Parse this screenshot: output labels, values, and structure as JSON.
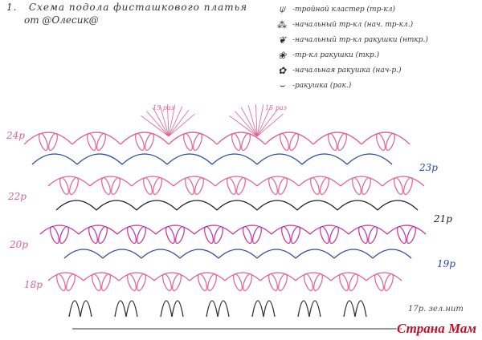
{
  "header": {
    "number": "1.",
    "title": "Схема подола фисташкового платья",
    "author": "от @Олесик@"
  },
  "legend": [
    {
      "icon": "triple-cluster-icon",
      "label": "-тройной кластер (тр-кл)"
    },
    {
      "icon": "initial-cluster-icon",
      "label": "-начальный тр-кл (нач. тр-кл.)"
    },
    {
      "icon": "initial-shell-cluster-icon",
      "label": "-начальный тр-кл ракушки (нткр.)"
    },
    {
      "icon": "shell-cluster-icon",
      "label": "-тр-кл ракушки (ткр.)"
    },
    {
      "icon": "initial-shell-icon",
      "label": "-начальная ракушка (нач-р.)"
    },
    {
      "icon": "shell-icon",
      "label": "-ракушка (рак.)"
    }
  ],
  "rows": {
    "r24": "24р",
    "r23": "23р",
    "r22": "22р",
    "r21": "21р",
    "r20": "20р",
    "r19": "19р",
    "r18": "18р",
    "r17": "17р. зел.нит"
  },
  "repeat_note": "15 раз",
  "colors": {
    "pink": "#e0628e",
    "blue": "#2a46a8",
    "black": "#222222",
    "magenta": "#c2339a"
  },
  "watermark": "Страна Мам"
}
